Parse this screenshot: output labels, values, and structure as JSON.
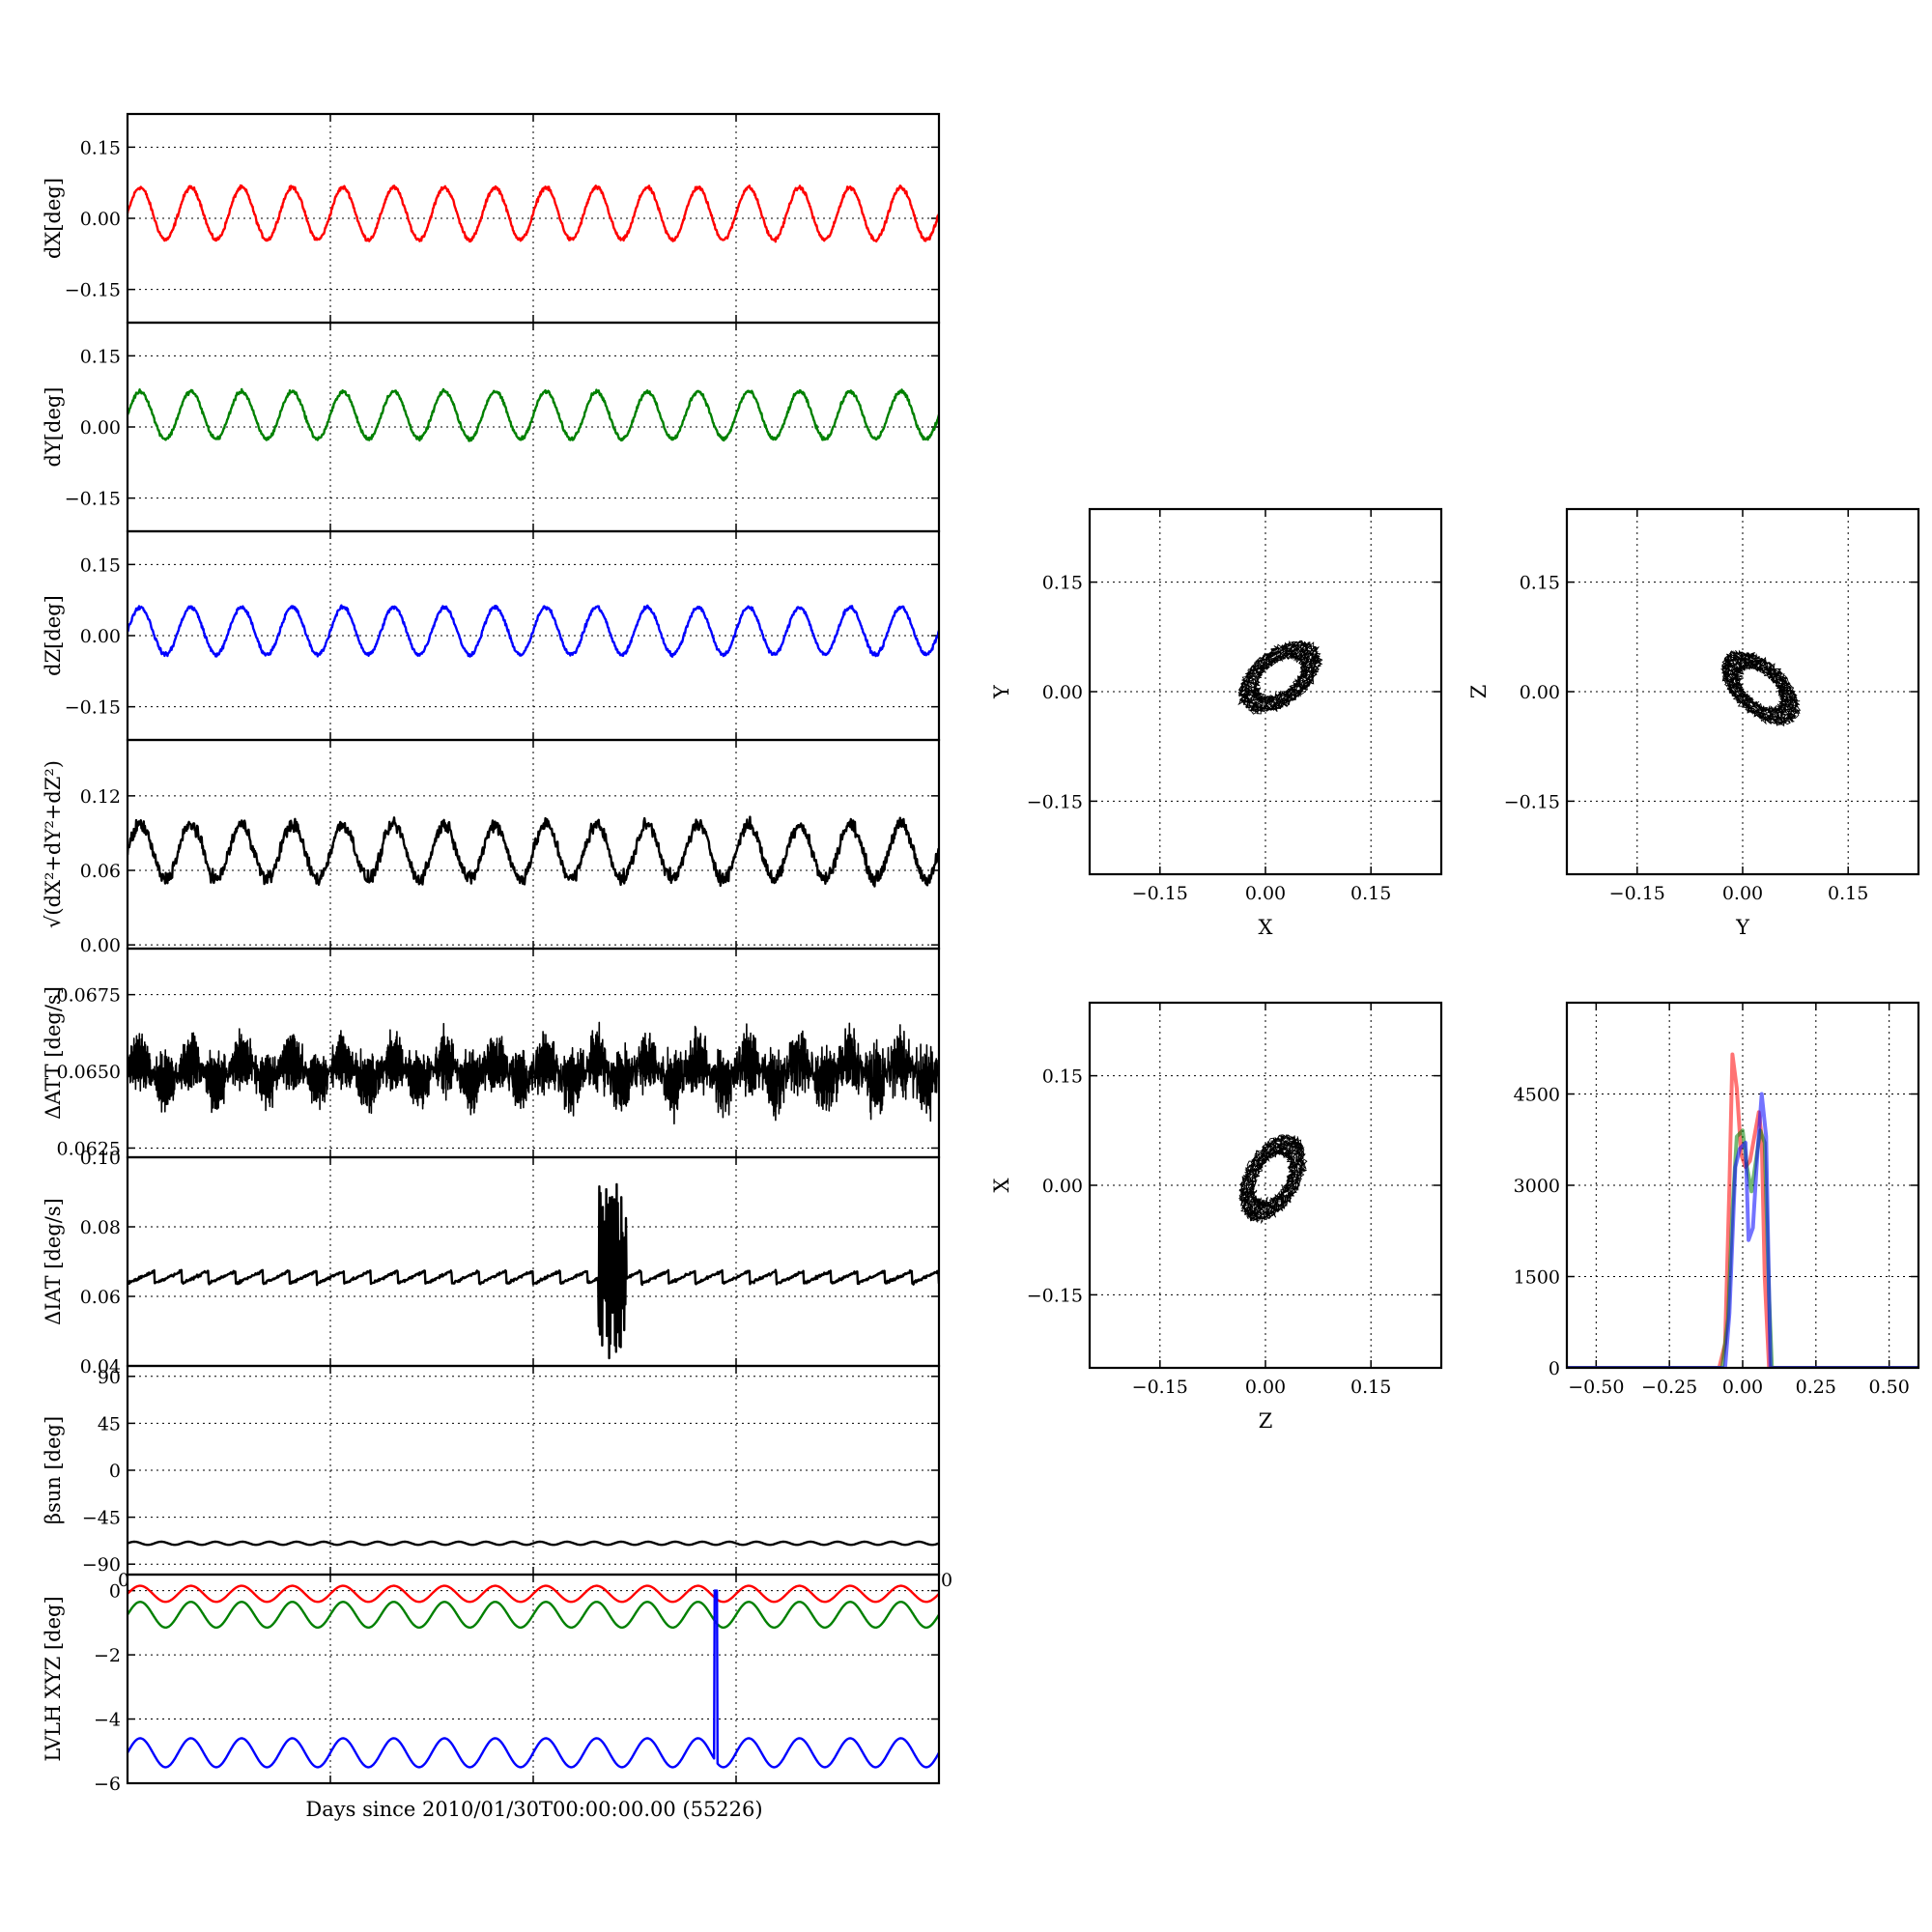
{
  "figure": {
    "xlabel": "Days since 2010/01/30T00:00:00.00 (55226)"
  },
  "chart_data": [
    {
      "id": "dx",
      "type": "line",
      "ylabel": "dX[deg]",
      "ylim": [
        -0.22,
        0.22
      ],
      "yticks": [
        0.15,
        0.0,
        -0.15
      ],
      "ytick_labels": [
        "0.15",
        "0.00",
        "−0.15"
      ],
      "grid": true,
      "series": [
        {
          "color": "#ff0000",
          "waveform": "sine",
          "cycles": 16,
          "mean": 0.01,
          "amplitude": 0.055,
          "noise": 0.006
        }
      ]
    },
    {
      "id": "dy",
      "type": "line",
      "ylabel": "dY[deg]",
      "ylim": [
        -0.22,
        0.22
      ],
      "yticks": [
        0.15,
        0.0,
        -0.15
      ],
      "ytick_labels": [
        "0.15",
        "0.00",
        "−0.15"
      ],
      "grid": true,
      "series": [
        {
          "color": "#008000",
          "waveform": "sine",
          "cycles": 16,
          "mean": 0.025,
          "amplitude": 0.05,
          "noise": 0.006
        }
      ]
    },
    {
      "id": "dz",
      "type": "line",
      "ylabel": "dZ[deg]",
      "ylim": [
        -0.22,
        0.22
      ],
      "yticks": [
        0.15,
        0.0,
        -0.15
      ],
      "ytick_labels": [
        "0.15",
        "0.00",
        "−0.15"
      ],
      "grid": true,
      "series": [
        {
          "color": "#0000ff",
          "waveform": "sine",
          "cycles": 16,
          "mean": 0.01,
          "amplitude": 0.05,
          "noise": 0.006
        }
      ]
    },
    {
      "id": "mag",
      "type": "line",
      "ylabel": "√(dX²+dY²+dZ²)",
      "ylim": [
        -0.003,
        0.165
      ],
      "yticks": [
        0.12,
        0.06,
        0.0
      ],
      "ytick_labels": [
        "0.12",
        "0.06",
        "0.00"
      ],
      "grid": true,
      "series": [
        {
          "color": "#000000",
          "waveform": "sine",
          "cycles": 16,
          "mean": 0.075,
          "amplitude": 0.022,
          "noise": 0.008
        }
      ]
    },
    {
      "id": "datt",
      "type": "line",
      "ylabel": "ΔATT [deg/s]",
      "ylim": [
        0.0622,
        0.069
      ],
      "yticks": [
        0.0675,
        0.065,
        0.0625
      ],
      "ytick_labels": [
        "0.0675",
        "0.0650",
        "0.0625"
      ],
      "grid": true,
      "series": [
        {
          "color": "#000000",
          "waveform": "dense",
          "cycles": 16,
          "mean": 0.065,
          "amplitude": 0.001,
          "noise": 0.0006
        }
      ]
    },
    {
      "id": "diat",
      "type": "line",
      "ylabel": "ΔIAT [deg/s]",
      "ylim": [
        0.04,
        0.1
      ],
      "yticks": [
        0.1,
        0.08,
        0.06,
        0.04
      ],
      "ytick_labels": [
        "0.10",
        "0.08",
        "0.06",
        "0.04"
      ],
      "grid": true,
      "series": [
        {
          "color": "#000000",
          "waveform": "sawtooth",
          "cycles": 30,
          "mean": 0.0655,
          "amplitude": 0.0018,
          "noise": 0.0006,
          "burst": {
            "x": [
              0.58,
              0.615
            ],
            "low": 0.042,
            "high": 0.094
          }
        }
      ]
    },
    {
      "id": "beta",
      "type": "line",
      "ylabel": "βsun [deg]",
      "ylim": [
        -100,
        100
      ],
      "yticks": [
        90,
        45,
        0,
        -45,
        -90
      ],
      "ytick_labels": [
        "90",
        "45",
        "0",
        "−45",
        "−90"
      ],
      "grid": true,
      "series": [
        {
          "color": "#000000",
          "waveform": "sine",
          "cycles": 30,
          "mean": -70,
          "amplitude": 1.5,
          "noise": 0
        }
      ]
    },
    {
      "id": "lvlh",
      "type": "line",
      "ylabel": "LVLH XYZ [deg]",
      "ylim": [
        -6,
        0.5
      ],
      "yticks": [
        0,
        -2,
        -4,
        -6
      ],
      "ytick_labels": [
        "0",
        "−2",
        "−4",
        "−6"
      ],
      "xtick_labels": [
        "0",
        "0"
      ],
      "grid": true,
      "series": [
        {
          "color": "#ff0000",
          "waveform": "sine",
          "cycles": 16,
          "mean": -0.1,
          "amplitude": 0.25,
          "noise": 0
        },
        {
          "color": "#008000",
          "waveform": "sine",
          "cycles": 16,
          "mean": -0.75,
          "amplitude": 0.4,
          "noise": 0
        },
        {
          "color": "#0000ff",
          "waveform": "sine",
          "cycles": 16,
          "mean": -5.05,
          "amplitude": 0.45,
          "noise": 0,
          "spike": {
            "x": 0.725,
            "to": 0
          }
        }
      ]
    },
    {
      "id": "xy",
      "type": "scatter",
      "xlabel": "X",
      "ylabel": "Y",
      "xlim": [
        -0.25,
        0.25
      ],
      "ylim": [
        -0.25,
        0.25
      ],
      "xticks": [
        -0.15,
        0.0,
        0.15
      ],
      "yticks": [
        0.15,
        0.0,
        -0.15
      ],
      "xtick_labels": [
        "−0.15",
        "0.00",
        "0.15"
      ],
      "ytick_labels": [
        "0.15",
        "0.00",
        "−0.15"
      ],
      "grid": true,
      "center": [
        0.02,
        0.02
      ],
      "radii": [
        0.05,
        0.045
      ],
      "tilt": 35
    },
    {
      "id": "yz",
      "type": "scatter",
      "xlabel": "Y",
      "ylabel": "Z",
      "xlim": [
        -0.25,
        0.25
      ],
      "ylim": [
        -0.25,
        0.25
      ],
      "xticks": [
        -0.15,
        0.0,
        0.15
      ],
      "yticks": [
        0.15,
        0.0,
        -0.15
      ],
      "xtick_labels": [
        "−0.15",
        "0.00",
        "0.15"
      ],
      "ytick_labels": [
        "0.15",
        "0.00",
        "−0.15"
      ],
      "grid": true,
      "center": [
        0.025,
        0.005
      ],
      "radii": [
        0.05,
        0.042
      ],
      "tilt": -40
    },
    {
      "id": "zx",
      "type": "scatter",
      "xlabel": "Z",
      "ylabel": "X",
      "xlim": [
        -0.25,
        0.25
      ],
      "ylim": [
        -0.25,
        0.25
      ],
      "xticks": [
        -0.15,
        0.0,
        0.15
      ],
      "yticks": [
        0.15,
        0.0,
        -0.15
      ],
      "xtick_labels": [
        "−0.15",
        "0.00",
        "0.15"
      ],
      "ytick_labels": [
        "0.15",
        "0.00",
        "−0.15"
      ],
      "grid": true,
      "center": [
        0.01,
        0.01
      ],
      "radii": [
        0.05,
        0.045
      ],
      "tilt": 60
    },
    {
      "id": "hist",
      "type": "line",
      "xlim": [
        -0.6,
        0.6
      ],
      "ylim": [
        0,
        6000
      ],
      "xticks": [
        -0.5,
        -0.25,
        0,
        0.25,
        0.5
      ],
      "yticks": [
        4500,
        3000,
        1500,
        0
      ],
      "xtick_labels": [
        "−0.50",
        "−0.25",
        "0.00",
        "0.25",
        "0.50"
      ],
      "ytick_labels": [
        "4500",
        "3000",
        "1500",
        "0"
      ],
      "grid": true,
      "series": [
        {
          "color": "#ff0000",
          "x": [
            -0.6,
            -0.08,
            -0.06,
            -0.045,
            -0.035,
            -0.02,
            -0.005,
            0.01,
            0.025,
            0.04,
            0.055,
            0.065,
            0.075,
            0.09,
            0.6
          ],
          "y": [
            0,
            0,
            400,
            3000,
            5150,
            4600,
            3500,
            3300,
            3400,
            3800,
            4200,
            3800,
            1500,
            0,
            0
          ]
        },
        {
          "color": "#008000",
          "x": [
            -0.6,
            -0.07,
            -0.05,
            -0.035,
            -0.02,
            0.0,
            0.015,
            0.03,
            0.045,
            0.06,
            0.075,
            0.09,
            0.1,
            0.6
          ],
          "y": [
            0,
            0,
            800,
            2600,
            3800,
            3900,
            3300,
            2900,
            3400,
            3900,
            3700,
            1200,
            0,
            0
          ]
        },
        {
          "color": "#0000ff",
          "x": [
            -0.6,
            -0.06,
            -0.045,
            -0.025,
            -0.01,
            0.01,
            0.02,
            0.035,
            0.05,
            0.065,
            0.08,
            0.095,
            0.6
          ],
          "y": [
            0,
            0,
            900,
            3300,
            3600,
            3700,
            2100,
            2300,
            3500,
            4500,
            3800,
            0,
            0
          ]
        }
      ]
    }
  ]
}
